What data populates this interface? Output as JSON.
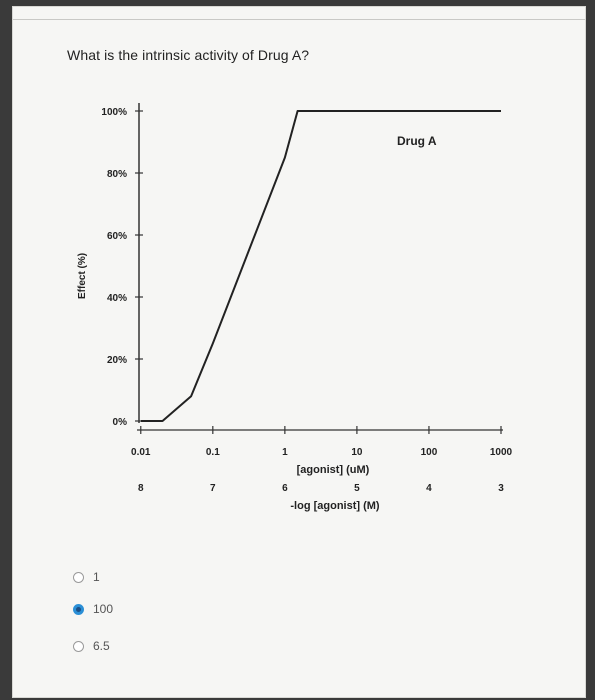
{
  "question": "What is the intrinsic activity of Drug A?",
  "chart_data": {
    "type": "line",
    "title": "",
    "ylabel": "Effect (%)",
    "y_ticks": [
      "100%",
      "80%",
      "60%",
      "40%",
      "20%",
      "0%"
    ],
    "ylim": [
      0,
      100
    ],
    "x_scale": "log",
    "x_ticks": [
      "0.01",
      "0.1",
      "1",
      "10",
      "100",
      "1000"
    ],
    "x_tick_values": [
      0.01,
      0.1,
      1,
      10,
      100,
      1000
    ],
    "xlabel": "[agonist] (uM)",
    "x2_ticks": [
      "8",
      "7",
      "6",
      "5",
      "4",
      "3"
    ],
    "x2label": "-log [agonist] (M)",
    "series": [
      {
        "name": "Drug A",
        "x": [
          0.005,
          0.02,
          0.05,
          0.1,
          1,
          1.5,
          10,
          100,
          1000
        ],
        "y": [
          0,
          0,
          8,
          25,
          85,
          100,
          100,
          100,
          100
        ]
      }
    ]
  },
  "options": [
    {
      "label": "1",
      "checked": false
    },
    {
      "label": "100",
      "checked": true
    },
    {
      "label": "6.5",
      "checked": false
    }
  ],
  "colors": {
    "selected": "#2b8fd6",
    "curve": "#222222"
  }
}
